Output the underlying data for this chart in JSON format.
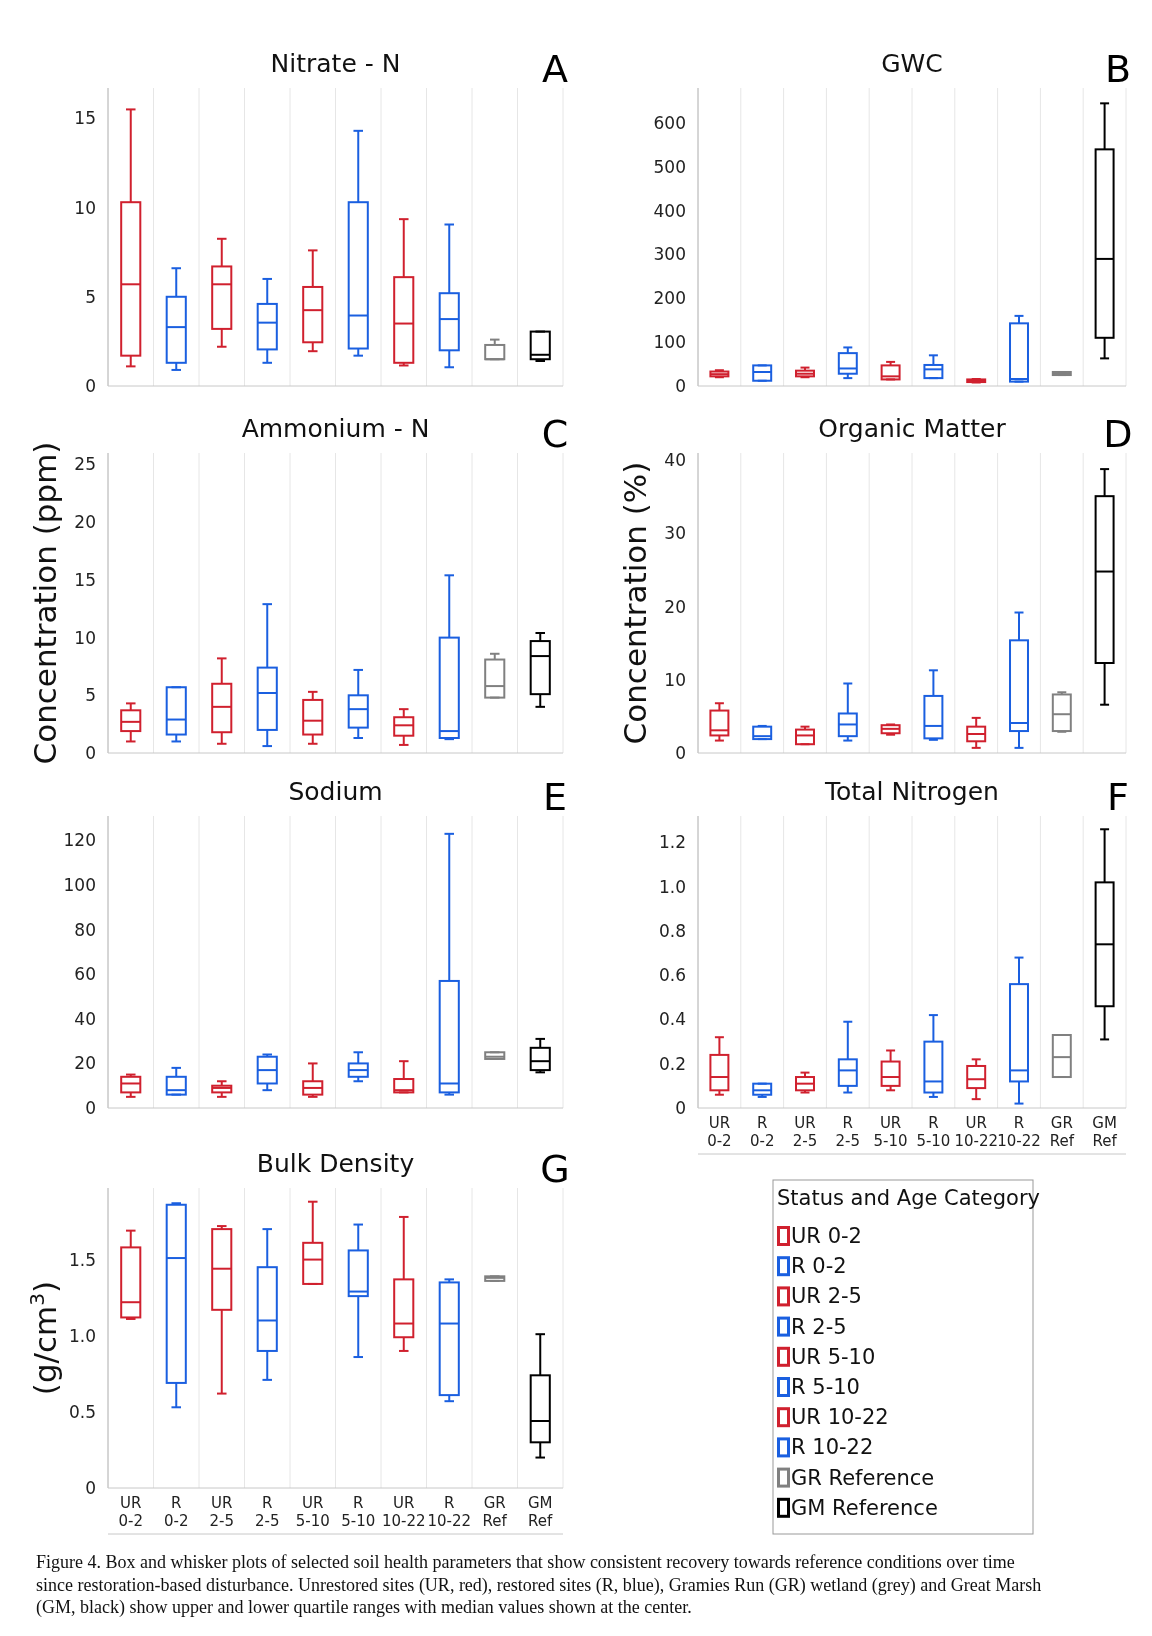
{
  "chart_data": [
    {
      "type": "box",
      "title": "Nitrate - N",
      "annotations": [
        "A"
      ],
      "tick_labels": "y",
      "grid": "x",
      "categories": [
        null,
        null,
        null,
        null,
        null,
        null,
        null,
        null,
        null,
        null
      ],
      "colors": [
        "#d0202e",
        "#1a5fe0",
        "#d0202e",
        "#1a5fe0",
        "#d0202e",
        "#1a5fe0",
        "#d0202e",
        "#1a5fe0",
        "#808080",
        "#000000"
      ],
      "ylim": [
        0,
        16.7
      ],
      "yticks": [
        0,
        5,
        10,
        15
      ],
      "boxes": [
        {
          "low": 1.1,
          "q1": 1.7,
          "median": 5.7,
          "q3": 10.3,
          "high": 15.5
        },
        {
          "low": 0.9,
          "q1": 1.3,
          "median": 3.3,
          "q3": 5.0,
          "high": 6.6
        },
        {
          "low": 2.2,
          "q1": 3.2,
          "median": 5.7,
          "q3": 6.7,
          "high": 8.25
        },
        {
          "low": 1.3,
          "q1": 2.05,
          "median": 3.55,
          "q3": 4.6,
          "high": 6.0
        },
        {
          "low": 1.95,
          "q1": 2.45,
          "median": 4.25,
          "q3": 5.55,
          "high": 7.6
        },
        {
          "low": 1.7,
          "q1": 2.1,
          "median": 3.95,
          "q3": 10.3,
          "high": 14.3
        },
        {
          "low": 1.15,
          "q1": 1.3,
          "median": 3.5,
          "q3": 6.1,
          "high": 9.35
        },
        {
          "low": 1.05,
          "q1": 2.0,
          "median": 3.75,
          "q3": 5.2,
          "high": 9.05
        },
        {
          "low": 1.5,
          "q1": 1.5,
          "median": 1.5,
          "q3": 2.3,
          "high": 2.6
        },
        {
          "low": 1.4,
          "q1": 1.5,
          "median": 1.75,
          "q3": 3.05,
          "high": 3.05
        }
      ]
    },
    {
      "type": "box",
      "title": "GWC",
      "annotations": [
        "B"
      ],
      "tick_labels": "y",
      "grid": "x",
      "categories": [
        null,
        null,
        null,
        null,
        null,
        null,
        null,
        null,
        null,
        null
      ],
      "colors": [
        "#d0202e",
        "#1a5fe0",
        "#d0202e",
        "#1a5fe0",
        "#d0202e",
        "#1a5fe0",
        "#d0202e",
        "#1a5fe0",
        "#808080",
        "#000000"
      ],
      "ylim": [
        0,
        680
      ],
      "yticks": [
        0,
        100,
        200,
        300,
        400,
        500,
        600
      ],
      "boxes": [
        {
          "low": 20,
          "q1": 22,
          "median": 27,
          "q3": 33,
          "high": 36
        },
        {
          "low": 12,
          "q1": 12,
          "median": 32,
          "q3": 47,
          "high": 47
        },
        {
          "low": 20,
          "q1": 22,
          "median": 28,
          "q3": 35,
          "high": 42
        },
        {
          "low": 18,
          "q1": 28,
          "median": 40,
          "q3": 75,
          "high": 88
        },
        {
          "low": 15,
          "q1": 15,
          "median": 22,
          "q3": 47,
          "high": 55
        },
        {
          "low": 18,
          "q1": 18,
          "median": 38,
          "q3": 48,
          "high": 70
        },
        {
          "low": 8,
          "q1": 9,
          "median": 12,
          "q3": 15,
          "high": 16
        },
        {
          "low": 10,
          "q1": 10,
          "median": 16,
          "q3": 143,
          "high": 160
        },
        {
          "low": 25,
          "q1": 25,
          "median": 28,
          "q3": 32,
          "high": 32
        },
        {
          "low": 63,
          "q1": 110,
          "median": 290,
          "q3": 540,
          "high": 645
        }
      ]
    },
    {
      "type": "box",
      "title": "Ammonium - N",
      "ylabel": "Concentration (ppm)",
      "annotations": [
        "C"
      ],
      "tick_labels": "y",
      "grid": "x",
      "categories": [
        null,
        null,
        null,
        null,
        null,
        null,
        null,
        null,
        null,
        null
      ],
      "colors": [
        "#d0202e",
        "#1a5fe0",
        "#d0202e",
        "#1a5fe0",
        "#d0202e",
        "#1a5fe0",
        "#d0202e",
        "#1a5fe0",
        "#808080",
        "#000000"
      ],
      "ylim": [
        0,
        26
      ],
      "yticks": [
        0,
        5,
        10,
        15,
        20,
        25
      ],
      "boxes": [
        {
          "low": 1.0,
          "q1": 1.9,
          "median": 2.7,
          "q3": 3.7,
          "high": 4.3
        },
        {
          "low": 1.0,
          "q1": 1.6,
          "median": 2.9,
          "q3": 5.7,
          "high": 5.7
        },
        {
          "low": 0.8,
          "q1": 1.8,
          "median": 4.0,
          "q3": 6.0,
          "high": 8.2
        },
        {
          "low": 0.6,
          "q1": 2.0,
          "median": 5.2,
          "q3": 7.4,
          "high": 12.9
        },
        {
          "low": 0.8,
          "q1": 1.6,
          "median": 2.8,
          "q3": 4.6,
          "high": 5.3
        },
        {
          "low": 1.3,
          "q1": 2.2,
          "median": 3.8,
          "q3": 5.0,
          "high": 7.2
        },
        {
          "low": 0.7,
          "q1": 1.5,
          "median": 2.4,
          "q3": 3.1,
          "high": 3.8
        },
        {
          "low": 1.2,
          "q1": 1.3,
          "median": 1.9,
          "q3": 10.0,
          "high": 15.4
        },
        {
          "low": 4.8,
          "q1": 4.8,
          "median": 5.8,
          "q3": 8.1,
          "high": 8.6
        },
        {
          "low": 4.0,
          "q1": 5.1,
          "median": 8.4,
          "q3": 9.7,
          "high": 10.4
        }
      ]
    },
    {
      "type": "box",
      "title": "Organic Matter",
      "ylabel": "Concentration (%)",
      "annotations": [
        "D"
      ],
      "tick_labels": "y",
      "grid": "x",
      "categories": [
        null,
        null,
        null,
        null,
        null,
        null,
        null,
        null,
        null,
        null
      ],
      "colors": [
        "#d0202e",
        "#1a5fe0",
        "#d0202e",
        "#1a5fe0",
        "#d0202e",
        "#1a5fe0",
        "#d0202e",
        "#1a5fe0",
        "#808080",
        "#000000"
      ],
      "ylim": [
        0,
        41
      ],
      "yticks": [
        0,
        10,
        20,
        30,
        40
      ],
      "boxes": [
        {
          "low": 1.7,
          "q1": 2.4,
          "median": 3.1,
          "q3": 5.8,
          "high": 6.8
        },
        {
          "low": 1.9,
          "q1": 1.9,
          "median": 2.3,
          "q3": 3.6,
          "high": 3.7
        },
        {
          "low": 1.2,
          "q1": 1.2,
          "median": 2.4,
          "q3": 3.2,
          "high": 3.6
        },
        {
          "low": 1.7,
          "q1": 2.3,
          "median": 3.9,
          "q3": 5.4,
          "high": 9.5
        },
        {
          "low": 2.5,
          "q1": 2.7,
          "median": 3.3,
          "q3": 3.8,
          "high": 3.9
        },
        {
          "low": 1.8,
          "q1": 2.0,
          "median": 3.7,
          "q3": 7.8,
          "high": 11.3
        },
        {
          "low": 0.7,
          "q1": 1.6,
          "median": 2.6,
          "q3": 3.6,
          "high": 4.8
        },
        {
          "low": 0.7,
          "q1": 3.0,
          "median": 4.1,
          "q3": 15.4,
          "high": 19.2
        },
        {
          "low": 2.9,
          "q1": 3.0,
          "median": 5.3,
          "q3": 8.0,
          "high": 8.3
        },
        {
          "low": 6.6,
          "q1": 12.3,
          "median": 24.8,
          "q3": 35.1,
          "high": 38.8
        }
      ]
    },
    {
      "type": "box",
      "title": "Sodium",
      "annotations": [
        "E"
      ],
      "tick_labels": "y",
      "grid": "x",
      "categories": [
        null,
        null,
        null,
        null,
        null,
        null,
        null,
        null,
        null,
        null
      ],
      "colors": [
        "#d0202e",
        "#1a5fe0",
        "#d0202e",
        "#1a5fe0",
        "#d0202e",
        "#1a5fe0",
        "#d0202e",
        "#1a5fe0",
        "#808080",
        "#000000"
      ],
      "ylim": [
        0,
        131
      ],
      "yticks": [
        0,
        20,
        40,
        60,
        80,
        100,
        120
      ],
      "boxes": [
        {
          "low": 5,
          "q1": 7,
          "median": 11,
          "q3": 14,
          "high": 15
        },
        {
          "low": 6,
          "q1": 6,
          "median": 8,
          "q3": 14,
          "high": 18
        },
        {
          "low": 5,
          "q1": 7,
          "median": 9,
          "q3": 10,
          "high": 12
        },
        {
          "low": 8,
          "q1": 11,
          "median": 17,
          "q3": 23,
          "high": 24
        },
        {
          "low": 5,
          "q1": 6,
          "median": 9,
          "q3": 12,
          "high": 20
        },
        {
          "low": 12,
          "q1": 14,
          "median": 17,
          "q3": 20,
          "high": 25
        },
        {
          "low": 7,
          "q1": 7,
          "median": 8,
          "q3": 13,
          "high": 21
        },
        {
          "low": 6,
          "q1": 7,
          "median": 11,
          "q3": 57,
          "high": 123
        },
        {
          "low": 22,
          "q1": 22,
          "median": 23,
          "q3": 25,
          "high": 25
        },
        {
          "low": 16,
          "q1": 17,
          "median": 21,
          "q3": 27,
          "high": 31
        }
      ]
    },
    {
      "type": "box",
      "title": "Total Nitrogen",
      "annotations": [
        "F"
      ],
      "grid": "x",
      "categories": [
        "UR 0-2",
        "R 0-2",
        "UR 2-5",
        "R 2-5",
        "UR 5-10",
        "R 5-10",
        "UR 10-22",
        "R 10-22",
        "GR Ref",
        "GM Ref"
      ],
      "colors": [
        "#d0202e",
        "#1a5fe0",
        "#d0202e",
        "#1a5fe0",
        "#d0202e",
        "#1a5fe0",
        "#d0202e",
        "#1a5fe0",
        "#808080",
        "#000000"
      ],
      "ylim": [
        0,
        1.32
      ],
      "yticks": [
        0,
        {
          "value": 0.2,
          "label": "0.2"
        },
        {
          "value": 0.4,
          "label": "0.4"
        },
        {
          "value": 0.6,
          "label": "0.6"
        },
        {
          "value": 0.8,
          "label": "0.8"
        },
        {
          "value": 1.0,
          "label": "1.0"
        },
        {
          "value": 1.2,
          "label": "1.2"
        }
      ],
      "boxes": [
        {
          "low": 0.06,
          "q1": 0.08,
          "median": 0.14,
          "q3": 0.24,
          "high": 0.32
        },
        {
          "low": 0.05,
          "q1": 0.06,
          "median": 0.08,
          "q3": 0.11,
          "high": 0.11
        },
        {
          "low": 0.07,
          "q1": 0.08,
          "median": 0.11,
          "q3": 0.14,
          "high": 0.16
        },
        {
          "low": 0.07,
          "q1": 0.1,
          "median": 0.17,
          "q3": 0.22,
          "high": 0.39
        },
        {
          "low": 0.08,
          "q1": 0.1,
          "median": 0.14,
          "q3": 0.21,
          "high": 0.26
        },
        {
          "low": 0.05,
          "q1": 0.07,
          "median": 0.12,
          "q3": 0.3,
          "high": 0.42
        },
        {
          "low": 0.04,
          "q1": 0.09,
          "median": 0.13,
          "q3": 0.19,
          "high": 0.22
        },
        {
          "low": 0.02,
          "q1": 0.12,
          "median": 0.17,
          "q3": 0.56,
          "high": 0.68
        },
        {
          "low": 0.14,
          "q1": 0.14,
          "median": 0.23,
          "q3": 0.33,
          "high": 0.33
        },
        {
          "low": 0.31,
          "q1": 0.46,
          "median": 0.74,
          "q3": 1.02,
          "high": 1.26
        }
      ]
    },
    {
      "type": "box",
      "title": "Bulk Density",
      "ylabel": "(g/cm$^{3}$)",
      "legend": "right",
      "legend_title": "Status and Age Category",
      "annotations": [
        "G",
        "Figure 4. Box and whisker plots of selected soil health parameters that show consistent recovery towards reference conditions over time since restoration-based disturbance. Unrestored sites (UR, red), restored sites (R, blue), Gramies Run (GR) wetland (grey) and Great Marsh (GM, black) show upper and lower quartile ranges with median values shown at the center."
      ],
      "grid": "x",
      "categories": [
        "UR 0-2",
        "R 0-2",
        "UR 2-5",
        "R 2-5",
        "UR 5-10",
        "R 5-10",
        "UR 10-22",
        "R 10-22",
        "GR Ref",
        "GM Ref"
      ],
      "ylim": [
        0,
        1.97
      ],
      "yticks": [
        0,
        {
          "value": 0.5,
          "label": "0.5"
        },
        {
          "value": 1.0,
          "label": "1.0"
        },
        {
          "value": 1.5,
          "label": "1.5"
        }
      ],
      "series": [
        {
          "name": "UR 0-2",
          "color": "#d0202e",
          "boxes": [
            {
              "low": 1.11,
              "q1": 1.12,
              "median": 1.22,
              "q3": 1.58,
              "high": 1.69
            },
            null,
            null,
            null,
            null,
            null,
            null,
            null,
            null,
            null
          ]
        },
        {
          "name": "R 0-2",
          "color": "#1a5fe0",
          "boxes": [
            null,
            {
              "low": 0.53,
              "q1": 0.69,
              "median": 1.51,
              "q3": 1.86,
              "high": 1.87
            },
            null,
            null,
            null,
            null,
            null,
            null,
            null,
            null
          ]
        },
        {
          "name": "UR 2-5",
          "color": "#d0202e",
          "boxes": [
            null,
            null,
            {
              "low": 0.62,
              "q1": 1.17,
              "median": 1.44,
              "q3": 1.7,
              "high": 1.72
            },
            null,
            null,
            null,
            null,
            null,
            null,
            null
          ]
        },
        {
          "name": "R 2-5",
          "color": "#1a5fe0",
          "boxes": [
            null,
            null,
            null,
            {
              "low": 0.71,
              "q1": 0.9,
              "median": 1.1,
              "q3": 1.45,
              "high": 1.7
            },
            null,
            null,
            null,
            null,
            null,
            null
          ]
        },
        {
          "name": "UR 5-10",
          "color": "#d0202e",
          "boxes": [
            null,
            null,
            null,
            null,
            {
              "low": 1.34,
              "q1": 1.34,
              "median": 1.5,
              "q3": 1.61,
              "high": 1.88
            },
            null,
            null,
            null,
            null,
            null
          ]
        },
        {
          "name": "R 5-10",
          "color": "#1a5fe0",
          "boxes": [
            null,
            null,
            null,
            null,
            null,
            {
              "low": 0.86,
              "q1": 1.26,
              "median": 1.29,
              "q3": 1.56,
              "high": 1.73
            },
            null,
            null,
            null,
            null
          ]
        },
        {
          "name": "UR 10-22",
          "color": "#d0202e",
          "boxes": [
            null,
            null,
            null,
            null,
            null,
            null,
            {
              "low": 0.9,
              "q1": 0.99,
              "median": 1.08,
              "q3": 1.37,
              "high": 1.78
            },
            null,
            null,
            null
          ]
        },
        {
          "name": "R 10-22",
          "color": "#1a5fe0",
          "boxes": [
            null,
            null,
            null,
            null,
            null,
            null,
            null,
            {
              "low": 0.57,
              "q1": 0.61,
              "median": 1.08,
              "q3": 1.35,
              "high": 1.37
            },
            null,
            null
          ]
        },
        {
          "name": "GR Reference",
          "color": "#808080",
          "boxes": [
            null,
            null,
            null,
            null,
            null,
            null,
            null,
            null,
            {
              "low": 1.36,
              "q1": 1.36,
              "median": 1.38,
              "q3": 1.39,
              "high": 1.39
            },
            null
          ]
        },
        {
          "name": "GM Reference",
          "color": "#000000",
          "boxes": [
            null,
            null,
            null,
            null,
            null,
            null,
            null,
            null,
            null,
            {
              "low": 0.2,
              "q1": 0.3,
              "median": 0.44,
              "q3": 0.74,
              "high": 1.01
            }
          ]
        }
      ]
    }
  ]
}
